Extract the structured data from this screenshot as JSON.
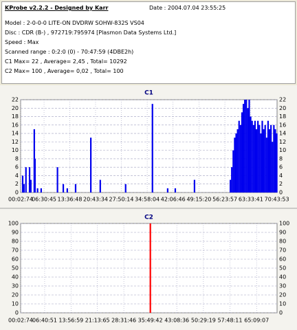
{
  "header": {
    "title": "KProbe v2.2.2 - Designed by Karr",
    "date": "Date : 2004.07.04 23:55:25",
    "lines": [
      "Model : 2-0-0-0 LITE-ON DVDRW SOHW-832S  VS04",
      "Disc : CDR (B-) , 972719:795974 [Plasmon Data Systems Ltd.]",
      "Speed : Max",
      "Scanned range : 0:2:0 (0) - 70:47:59 (4DBE2h)",
      "C1 Max= 22 , Average= 2,45 , Total= 10292",
      "C2 Max= 100 , Average= 0,02 , Total= 100"
    ]
  },
  "chart_data": [
    {
      "type": "bar",
      "title": "C1",
      "color": "#0000ee",
      "grid": true,
      "x": [
        0.6,
        0.95,
        1.5,
        2.5,
        2.85,
        3.8,
        4.0,
        4.7,
        5.7,
        10.2,
        11.8,
        12.9,
        15.2,
        19.4,
        22.0,
        29.0,
        36.4,
        40.6,
        42.7,
        48.0,
        57.9,
        58.3,
        58.7,
        59.1,
        59.5,
        59.9,
        60.3,
        60.7,
        61.1,
        61.5,
        61.9,
        62.3,
        62.7,
        63.1,
        63.5,
        63.9,
        64.3,
        64.7,
        65.1,
        65.5,
        65.9,
        66.3,
        66.7,
        67.1,
        67.5,
        67.9,
        68.3,
        68.7,
        69.1,
        69.5,
        69.9,
        70.3,
        70.7
      ],
      "values": [
        4,
        2,
        6,
        6,
        3,
        15,
        8,
        1,
        1,
        6,
        2,
        1,
        2,
        13,
        3,
        2,
        21,
        1,
        1,
        3,
        3,
        6,
        10,
        13,
        14,
        15,
        17,
        16,
        19,
        21,
        22,
        22,
        20,
        22,
        18,
        17,
        16,
        17,
        15,
        17,
        16,
        14,
        17,
        15,
        16,
        13,
        17,
        15,
        16,
        12,
        16,
        15,
        14
      ],
      "xlim": [
        0.05,
        70.8
      ],
      "xticks": [
        {
          "value": 0.05,
          "label": "00:02:74"
        },
        {
          "value": 6.51,
          "label": "06:30:45"
        },
        {
          "value": 13.61,
          "label": "13:36:48"
        },
        {
          "value": 20.72,
          "label": "20:43:34"
        },
        {
          "value": 27.84,
          "label": "27:50:14"
        },
        {
          "value": 34.97,
          "label": "34:58:04"
        },
        {
          "value": 42.11,
          "label": "42:06:46"
        },
        {
          "value": 49.26,
          "label": "49:15:20"
        },
        {
          "value": 56.4,
          "label": "56:23:57"
        },
        {
          "value": 63.56,
          "label": "63:33:41"
        },
        {
          "value": 70.73,
          "label": "70:43:53"
        }
      ],
      "ylim": [
        0,
        22
      ],
      "yticks": [
        0,
        2,
        4,
        6,
        8,
        10,
        12,
        14,
        16,
        18,
        20,
        22
      ]
    },
    {
      "type": "bar",
      "title": "C2",
      "color": "#ff0000",
      "grid": true,
      "x": [
        35.82
      ],
      "values": [
        100
      ],
      "xlim": [
        0.05,
        70.8
      ],
      "xticks": [
        {
          "value": 0.05,
          "label": "00:02:74"
        },
        {
          "value": 6.68,
          "label": "06:40:51"
        },
        {
          "value": 13.95,
          "label": "13:56:59"
        },
        {
          "value": 21.23,
          "label": "21:13:65"
        },
        {
          "value": 28.52,
          "label": "28:31:46"
        },
        {
          "value": 35.82,
          "label": "35:49:42"
        },
        {
          "value": 43.14,
          "label": "43:08:36"
        },
        {
          "value": 50.48,
          "label": "50:29:19"
        },
        {
          "value": 57.81,
          "label": "57:48:11"
        },
        {
          "value": 65.15,
          "label": "65:09:07"
        }
      ],
      "ylim": [
        0,
        100
      ],
      "yticks": [
        0,
        10,
        20,
        30,
        40,
        50,
        60,
        70,
        80,
        90,
        100
      ]
    }
  ]
}
